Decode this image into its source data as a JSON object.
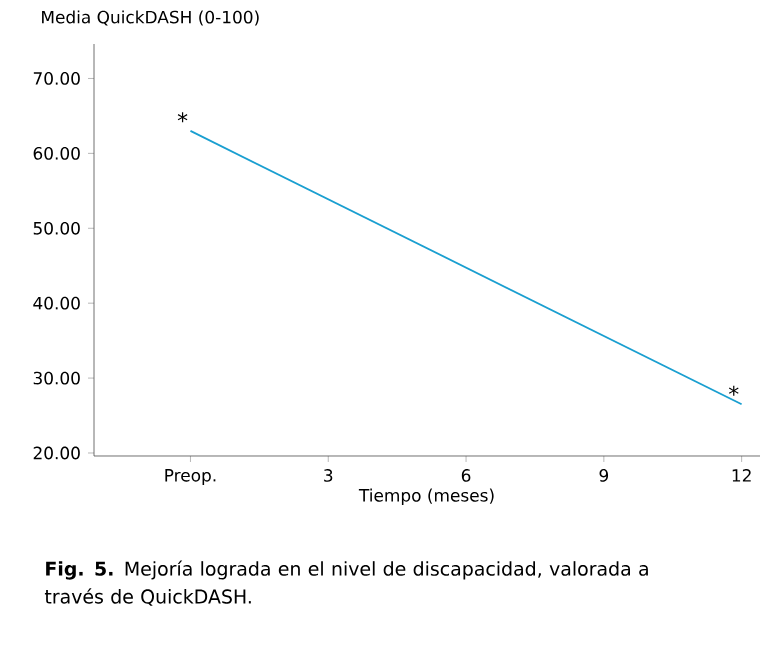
{
  "chart_data": {
    "type": "line",
    "ylabel": "Media QuickDASH (0-100)",
    "xlabel": "Tiempo (meses)",
    "x": [
      0,
      12
    ],
    "series": [
      {
        "color": "#1a9fd0",
        "values": [
          63,
          26.5
        ]
      }
    ],
    "xlim": [
      -2.1,
      12.4
    ],
    "ylim": [
      19.6,
      74.6
    ],
    "xticks": [
      {
        "value": 0,
        "label": "Preop."
      },
      3,
      6,
      9,
      12
    ],
    "yticks": [
      {
        "value": 20,
        "label": "20.00"
      },
      {
        "value": 30,
        "label": "30.00"
      },
      {
        "value": 40,
        "label": "40.00"
      },
      {
        "value": 50,
        "label": "50.00"
      },
      {
        "value": 60,
        "label": "60.00"
      },
      {
        "value": 70,
        "label": "70.00"
      }
    ],
    "marker": "none",
    "line_style": "solid",
    "annotations": [
      {
        "text": "*",
        "x": 0,
        "y": 63
      },
      {
        "text": "*",
        "x": 12,
        "y": 26.5
      },
      "**Fig. 5.** Mejoría lograda en el nivel de discapacidad, valorada a través de QuickDASH."
    ]
  }
}
